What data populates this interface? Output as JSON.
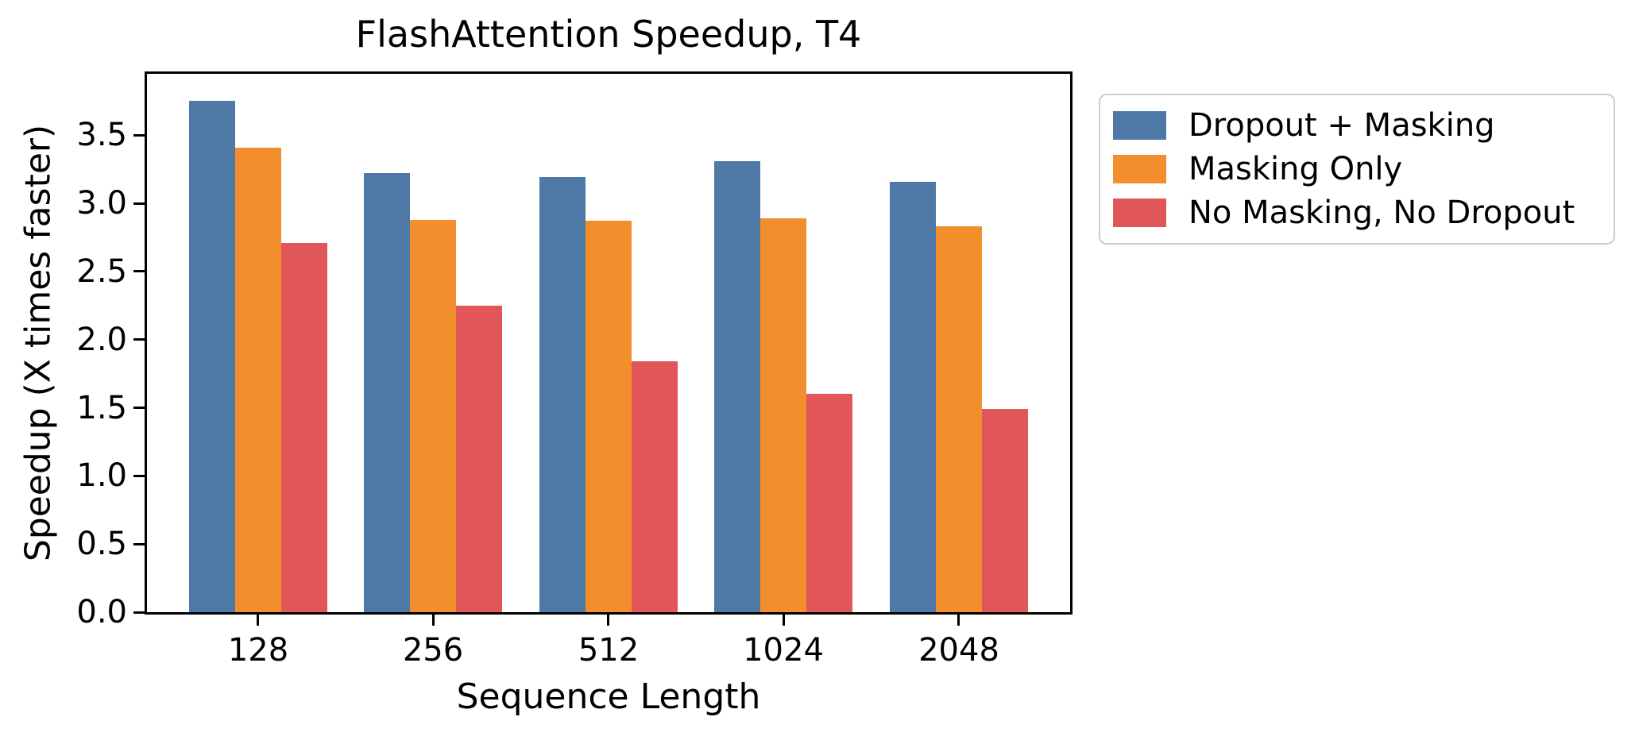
{
  "title": "FlashAttention Speedup, T4",
  "chart_data": {
    "type": "bar",
    "title": "FlashAttention Speedup, T4",
    "xlabel": "Sequence Length",
    "ylabel": "Speedup (X times faster)",
    "categories": [
      "128",
      "256",
      "512",
      "1024",
      "2048"
    ],
    "series": [
      {
        "name": "Dropout + Masking",
        "color": "#4E79A7",
        "values": [
          3.75,
          3.22,
          3.19,
          3.31,
          3.16
        ]
      },
      {
        "name": "Masking Only",
        "color": "#F28E2B",
        "values": [
          3.41,
          2.88,
          2.87,
          2.89,
          2.83
        ]
      },
      {
        "name": "No Masking, No Dropout",
        "color": "#E15759",
        "values": [
          2.71,
          2.25,
          1.84,
          1.6,
          1.49
        ]
      }
    ],
    "ylim": [
      0,
      3.95
    ],
    "yticks": [
      0.0,
      0.5,
      1.0,
      1.5,
      2.0,
      2.5,
      3.0,
      3.5
    ],
    "ytick_labels": [
      "0.0",
      "0.5",
      "1.0",
      "1.5",
      "2.0",
      "2.5",
      "3.0",
      "3.5"
    ],
    "grid": false,
    "legend_position": "outside-top-right",
    "axis_color": "#000000",
    "legend_border_color": "#cccccc"
  }
}
